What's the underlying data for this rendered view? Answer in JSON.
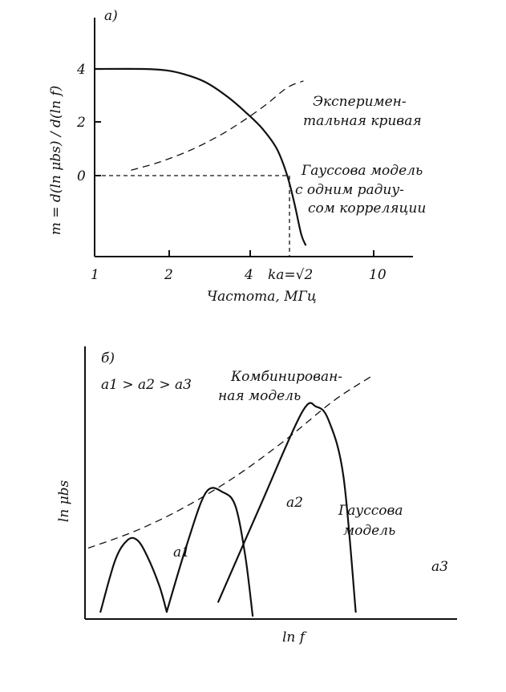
{
  "chart_data": [
    {
      "panel_label": "a)",
      "type": "line",
      "xlabel": "Частота, МГц",
      "ylabel": "m = d(ln μbs) / d(ln f)",
      "x_scale": "log",
      "x_ticks": [
        "1",
        "2",
        "4",
        "10"
      ],
      "y_ticks": [
        "4",
        "2",
        "0"
      ],
      "ka_marker": "ka=√2",
      "xlim": [
        1,
        15
      ],
      "ylim": [
        -3,
        6
      ],
      "series": [
        {
          "name": "Экспериментальная кривая",
          "name_lines": [
            "Эксперимен-",
            "тальная кривая"
          ],
          "style": "dashed",
          "x": [
            1.35,
            1.7,
            2.2,
            2.8,
            3.4,
            4.1,
            4.9,
            5.6
          ],
          "y": [
            0.2,
            0.5,
            0.95,
            1.5,
            2.05,
            2.65,
            3.3,
            3.55
          ]
        },
        {
          "name": "Гауссова модель с одним радиусом корреляции",
          "name_lines": [
            "Гауссова модель",
            "с одним радиу-",
            "сом корреляции"
          ],
          "style": "solid",
          "x": [
            1.0,
            1.5,
            1.8,
            2.1,
            2.5,
            3.0,
            3.5,
            4.0,
            4.5,
            4.9,
            5.2,
            5.5,
            5.7
          ],
          "y": [
            4.0,
            4.0,
            3.95,
            3.8,
            3.5,
            2.95,
            2.35,
            1.75,
            1.0,
            0.0,
            -1.05,
            -2.2,
            -2.6
          ]
        }
      ]
    },
    {
      "panel_label": "б)",
      "type": "line",
      "xlabel": "ln f",
      "ylabel": "ln μbs",
      "inequality": "a1 > a2 > a3",
      "series": [
        {
          "name": "Комбинированная модель",
          "name_lines": [
            "Комбинирован-",
            "ная модель"
          ],
          "style": "dashed",
          "x": [
            0,
            0.2,
            0.4,
            0.6,
            0.8,
            1.0,
            1.15
          ],
          "y": [
            0.34,
            0.43,
            0.55,
            0.7,
            0.88,
            1.08,
            1.2
          ]
        },
        {
          "name": "a1",
          "style": "solid",
          "x": [
            0.05,
            0.11,
            0.16,
            0.2,
            0.24,
            0.29,
            0.32
          ],
          "y": [
            0.02,
            0.28,
            0.38,
            0.38,
            0.3,
            0.15,
            0.02
          ]
        },
        {
          "name": "a2",
          "style": "solid",
          "x": [
            0.32,
            0.4,
            0.48,
            0.55,
            0.6,
            0.64,
            0.67
          ],
          "y": [
            0.02,
            0.35,
            0.62,
            0.62,
            0.55,
            0.3,
            0.0
          ]
        },
        {
          "name": "a3",
          "style": "solid",
          "x": [
            0.53,
            0.7,
            0.87,
            0.93,
            0.98,
            1.04,
            1.09
          ],
          "y": [
            0.07,
            0.55,
            1.02,
            1.05,
            0.98,
            0.7,
            0.02
          ]
        }
      ],
      "annotation": [
        "Гауссова",
        "модель"
      ]
    }
  ]
}
